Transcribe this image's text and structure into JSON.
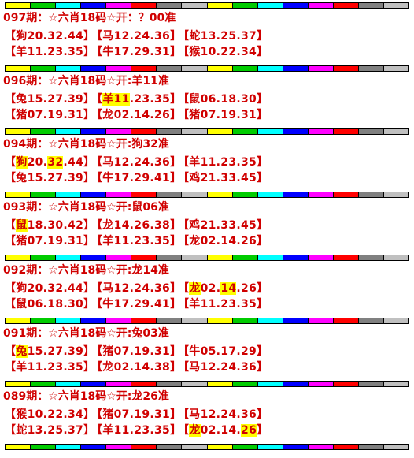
{
  "blocks": [
    {
      "header": "097期：☆六肖18码☆开：？00准",
      "rows": [
        [
          [
            {
              "text": "【狗20.32.44】"
            }
          ],
          [
            {
              "text": "【马12.24.36】"
            }
          ],
          [
            {
              "text": "【蛇13.25.37】"
            }
          ]
        ],
        [
          [
            {
              "text": "【羊11.23.35】"
            }
          ],
          [
            {
              "text": "【牛17.29.31】"
            }
          ],
          [
            {
              "text": "【猴10.22.34】"
            }
          ]
        ]
      ]
    },
    {
      "header": "096期：☆六肖18码☆开:羊11准",
      "rows": [
        [
          [
            {
              "text": "【兔15.27.39】"
            }
          ],
          [
            {
              "text": "【"
            },
            {
              "text": "羊11",
              "hl": true
            },
            {
              "text": ".23.35】"
            }
          ],
          [
            {
              "text": "【鼠06.18.30】"
            }
          ]
        ],
        [
          [
            {
              "text": "【猪07.19.31】"
            }
          ],
          [
            {
              "text": "【龙02.14.26】"
            }
          ],
          [
            {
              "text": "【猪07.19.31】"
            }
          ]
        ]
      ]
    },
    {
      "header": "094期：☆六肖18码☆开:狗32准",
      "rows": [
        [
          [
            {
              "text": "【"
            },
            {
              "text": "狗",
              "hl": true
            },
            {
              "text": "20."
            },
            {
              "text": "32",
              "hl": true
            },
            {
              "text": ".44】"
            }
          ],
          [
            {
              "text": "【马12.24.36】"
            }
          ],
          [
            {
              "text": "【羊11.23.35】"
            }
          ]
        ],
        [
          [
            {
              "text": "【兔15.27.39】"
            }
          ],
          [
            {
              "text": "【牛17.29.41】"
            }
          ],
          [
            {
              "text": "【鸡21.33.45】"
            }
          ]
        ]
      ]
    },
    {
      "header": "093期：☆六肖18码☆开:鼠06准",
      "rows": [
        [
          [
            {
              "text": "【"
            },
            {
              "text": "鼠",
              "hl": true
            },
            {
              "text": "18.30.42】"
            }
          ],
          [
            {
              "text": "【龙14.26.38】"
            }
          ],
          [
            {
              "text": "【鸡21.33.45】"
            }
          ]
        ],
        [
          [
            {
              "text": "【猪07.19.31】"
            }
          ],
          [
            {
              "text": "【羊11.23.35】"
            }
          ],
          [
            {
              "text": "【龙02.14.26】"
            }
          ]
        ]
      ]
    },
    {
      "header": "092期：☆六肖18码☆开:龙14准",
      "rows": [
        [
          [
            {
              "text": "【狗20.32.44】"
            }
          ],
          [
            {
              "text": "【马12.24.36】"
            }
          ],
          [
            {
              "text": "【"
            },
            {
              "text": "龙",
              "hl": true
            },
            {
              "text": "02."
            },
            {
              "text": "14",
              "hl": true
            },
            {
              "text": ".26】"
            }
          ]
        ],
        [
          [
            {
              "text": "【鼠06.18.30】"
            }
          ],
          [
            {
              "text": "【牛17.29.41】"
            }
          ],
          [
            {
              "text": "【羊11.23.35】"
            }
          ]
        ]
      ]
    },
    {
      "header": "091期：☆六肖18码☆开:兔03准",
      "rows": [
        [
          [
            {
              "text": "【"
            },
            {
              "text": "兔",
              "hl": true
            },
            {
              "text": "15.27.39】"
            }
          ],
          [
            {
              "text": "【猪07.19.31】"
            }
          ],
          [
            {
              "text": "【牛05.17.29】"
            }
          ]
        ],
        [
          [
            {
              "text": "【羊11.23.35】"
            }
          ],
          [
            {
              "text": "【龙02.14.38】"
            }
          ],
          [
            {
              "text": "【马12.24.36】"
            }
          ]
        ]
      ]
    },
    {
      "header": "089期：☆六肖18码☆开:龙26准",
      "rows": [
        [
          [
            {
              "text": "【猴10.22.34】"
            }
          ],
          [
            {
              "text": "【猪07.19.31】"
            }
          ],
          [
            {
              "text": "【马12.24.36】"
            }
          ]
        ],
        [
          [
            {
              "text": "【蛇13.25.37】"
            }
          ],
          [
            {
              "text": "【羊11.23.35】"
            }
          ],
          [
            {
              "text": "【"
            },
            {
              "text": "龙",
              "hl": true
            },
            {
              "text": "02.14."
            },
            {
              "text": "26",
              "hl": true
            },
            {
              "text": "】"
            }
          ]
        ]
      ]
    }
  ]
}
